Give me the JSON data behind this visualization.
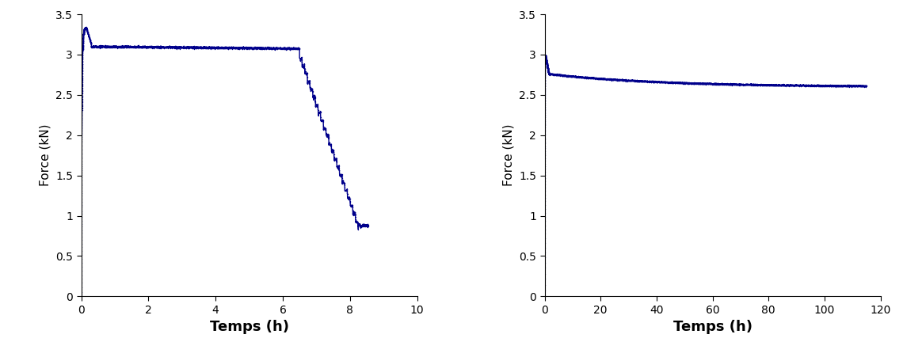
{
  "line_color": "#00008B",
  "line_width": 1.0,
  "markersize": 2.0,
  "plot1": {
    "xlabel": "Temps (h)",
    "ylabel": "Force (kN)",
    "xlim": [
      0,
      10
    ],
    "ylim": [
      0,
      3.5
    ],
    "xticks": [
      0,
      2,
      4,
      6,
      8,
      10
    ],
    "yticks": [
      0,
      0.5,
      1,
      1.5,
      2,
      2.5,
      3,
      3.5
    ]
  },
  "plot2": {
    "xlabel": "Temps (h)",
    "ylabel": "Force (kN)",
    "xlim": [
      0,
      120
    ],
    "ylim": [
      0,
      3.5
    ],
    "xticks": [
      0,
      20,
      40,
      60,
      80,
      100,
      120
    ],
    "yticks": [
      0,
      0.5,
      1,
      1.5,
      2,
      2.5,
      3,
      3.5
    ]
  },
  "xlabel_fontsize": 13,
  "ylabel_fontsize": 11,
  "tick_fontsize": 10,
  "xlabel_fontweight": "bold",
  "background_color": "#ffffff"
}
